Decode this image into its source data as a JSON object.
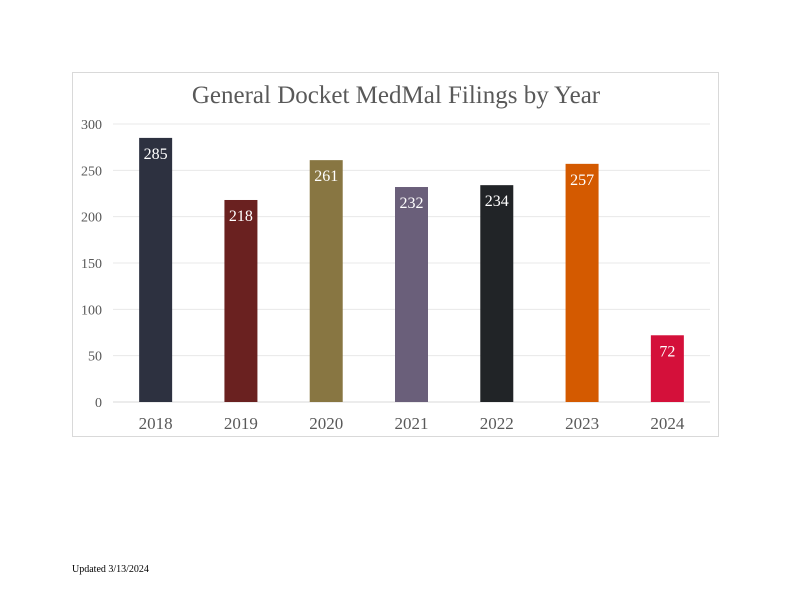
{
  "chart_data": {
    "type": "bar",
    "title": "General Docket MedMal Filings by Year",
    "categories": [
      "2018",
      "2019",
      "2020",
      "2021",
      "2022",
      "2023",
      "2024"
    ],
    "values": [
      285,
      218,
      261,
      232,
      234,
      257,
      72
    ],
    "colors": [
      "#2d3140",
      "#6a2120",
      "#887642",
      "#6a5f7a",
      "#212427",
      "#d45a00",
      "#d4103a"
    ],
    "y_ticks": [
      "0",
      "50",
      "100",
      "150",
      "200",
      "250",
      "300"
    ],
    "ylim": [
      0,
      300
    ],
    "grid": true,
    "data_labels": true,
    "legend": "none"
  },
  "footer": {
    "note": "Updated 3/13/2024"
  }
}
